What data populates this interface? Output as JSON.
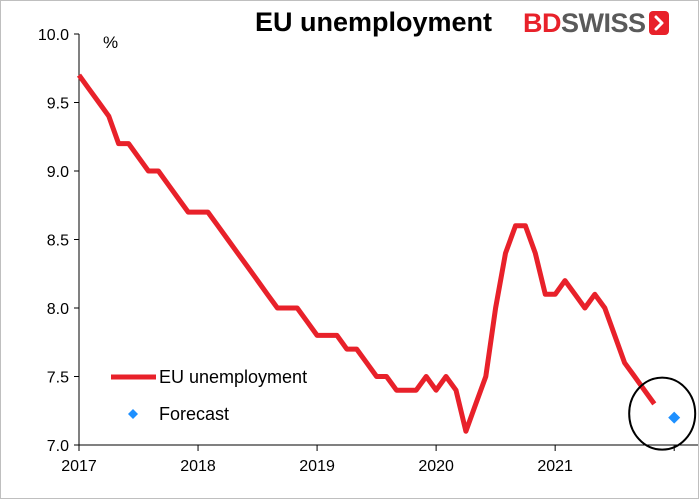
{
  "chart_data": {
    "type": "line",
    "title": "EU unemployment",
    "unit": "%",
    "brand": {
      "name_part1": "BD",
      "name_part2": "SWISS",
      "logo_icon": "bdswiss-logo-icon"
    },
    "ylim": [
      7.0,
      10.0
    ],
    "y_ticks": [
      "7.0",
      "7.5",
      "8.0",
      "8.5",
      "9.0",
      "9.5",
      "10.0"
    ],
    "xlim": [
      2017.0,
      2022.2
    ],
    "x_ticks": [
      "2017",
      "2018",
      "2019",
      "2020",
      "2021"
    ],
    "grid": false,
    "legend_position": "bottom-left",
    "series": [
      {
        "name": "EU unemployment",
        "color": "#e8212a",
        "points": [
          [
            2017.0,
            9.7
          ],
          [
            2017.083,
            9.6
          ],
          [
            2017.167,
            9.5
          ],
          [
            2017.25,
            9.4
          ],
          [
            2017.333,
            9.2
          ],
          [
            2017.417,
            9.2
          ],
          [
            2017.5,
            9.1
          ],
          [
            2017.583,
            9.0
          ],
          [
            2017.667,
            9.0
          ],
          [
            2017.75,
            8.9
          ],
          [
            2017.833,
            8.8
          ],
          [
            2017.917,
            8.7
          ],
          [
            2018.0,
            8.7
          ],
          [
            2018.083,
            8.7
          ],
          [
            2018.167,
            8.6
          ],
          [
            2018.25,
            8.5
          ],
          [
            2018.333,
            8.4
          ],
          [
            2018.417,
            8.3
          ],
          [
            2018.5,
            8.2
          ],
          [
            2018.583,
            8.1
          ],
          [
            2018.667,
            8.0
          ],
          [
            2018.75,
            8.0
          ],
          [
            2018.833,
            8.0
          ],
          [
            2018.917,
            7.9
          ],
          [
            2019.0,
            7.8
          ],
          [
            2019.083,
            7.8
          ],
          [
            2019.167,
            7.8
          ],
          [
            2019.25,
            7.7
          ],
          [
            2019.333,
            7.7
          ],
          [
            2019.417,
            7.6
          ],
          [
            2019.5,
            7.5
          ],
          [
            2019.583,
            7.5
          ],
          [
            2019.667,
            7.4
          ],
          [
            2019.75,
            7.4
          ],
          [
            2019.833,
            7.4
          ],
          [
            2019.917,
            7.5
          ],
          [
            2020.0,
            7.4
          ],
          [
            2020.083,
            7.5
          ],
          [
            2020.167,
            7.4
          ],
          [
            2020.25,
            7.1
          ],
          [
            2020.333,
            7.3
          ],
          [
            2020.417,
            7.5
          ],
          [
            2020.5,
            8.0
          ],
          [
            2020.583,
            8.4
          ],
          [
            2020.667,
            8.6
          ],
          [
            2020.75,
            8.6
          ],
          [
            2020.833,
            8.4
          ],
          [
            2020.917,
            8.1
          ],
          [
            2021.0,
            8.1
          ],
          [
            2021.083,
            8.2
          ],
          [
            2021.167,
            8.1
          ],
          [
            2021.25,
            8.0
          ],
          [
            2021.333,
            8.1
          ],
          [
            2021.417,
            8.0
          ],
          [
            2021.5,
            7.8
          ],
          [
            2021.583,
            7.6
          ],
          [
            2021.667,
            7.5
          ],
          [
            2021.75,
            7.4
          ],
          [
            2021.833,
            7.3
          ]
        ]
      },
      {
        "name": "Forecast",
        "color": "#1e90ff",
        "marker": "diamond",
        "points": [
          [
            2022.0,
            7.2
          ]
        ]
      }
    ],
    "annotations": [
      {
        "type": "circle",
        "around": [
          2022.0,
          7.2
        ],
        "color": "#000000"
      }
    ]
  }
}
